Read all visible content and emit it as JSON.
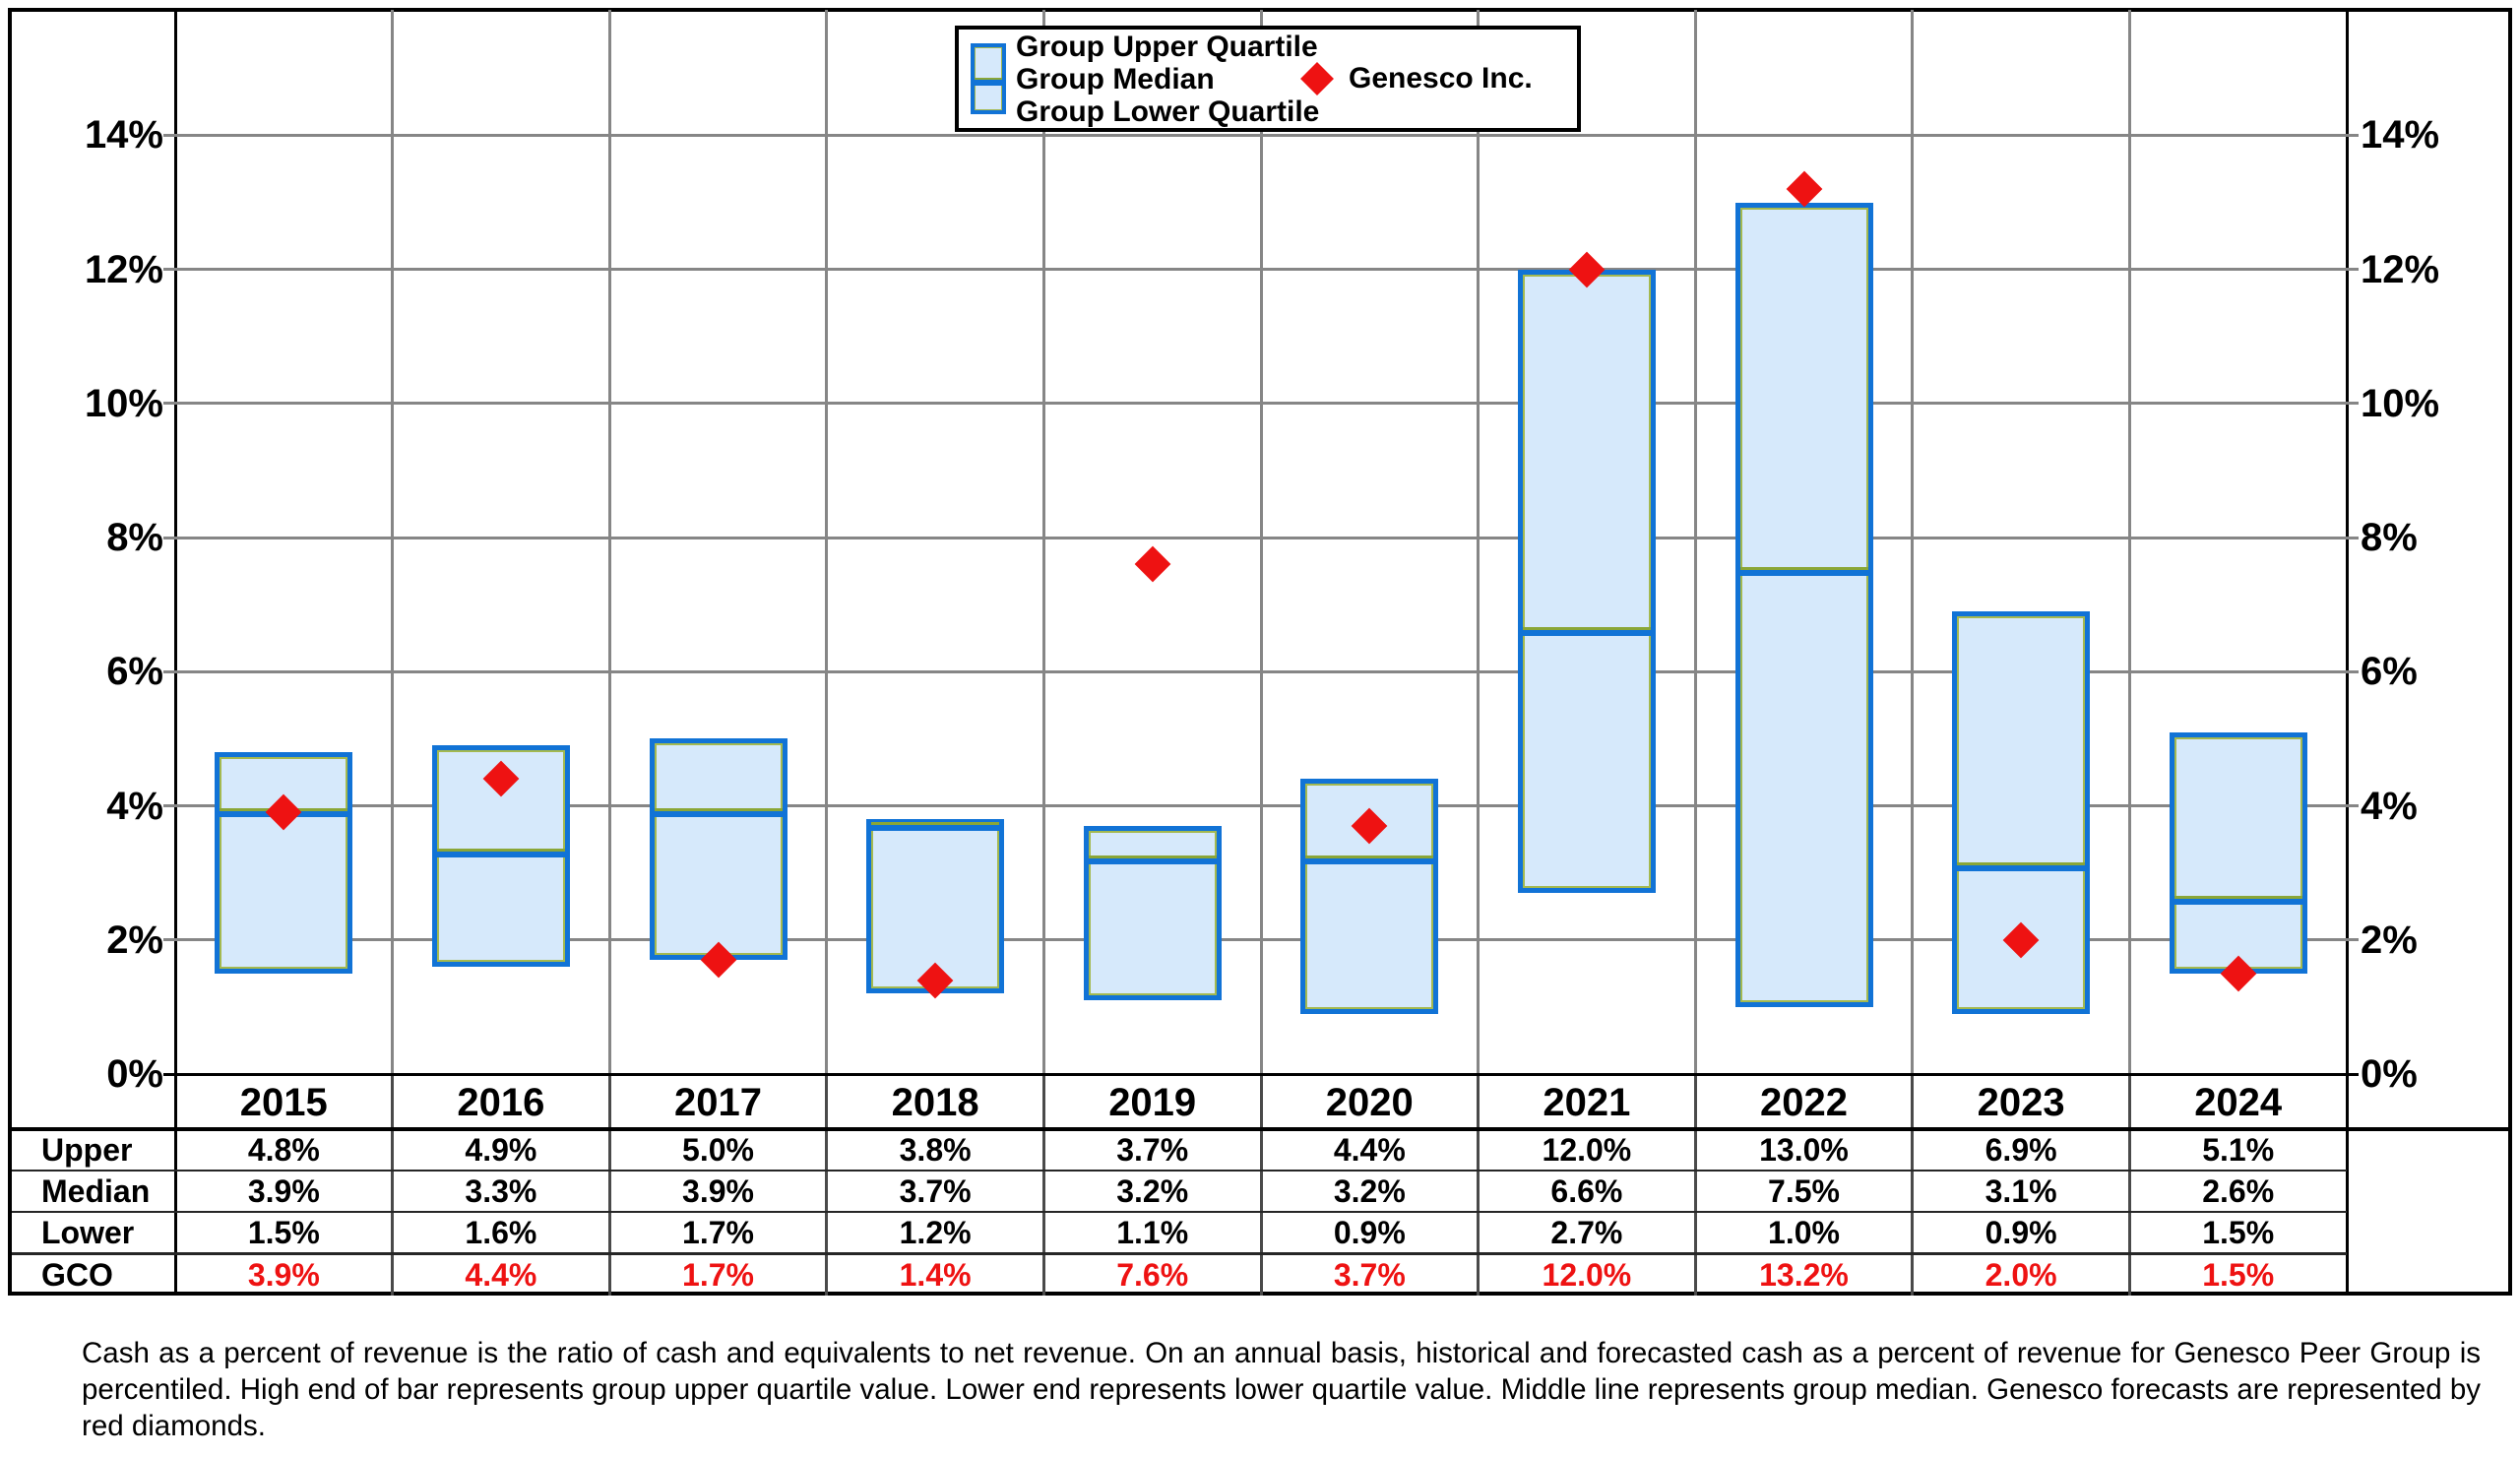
{
  "colors": {
    "bar_fill": "#d6e9fb",
    "bar_border": "#1173d6",
    "bar_inner_green": "#a4b94f",
    "median_green": "#8aa637",
    "diamond_red": "#ee1212",
    "gco_text_red": "#ee1212",
    "gridline_gray": "#868686",
    "axis_black": "#000000"
  },
  "legend": {
    "group_items": [
      "Group Upper Quartile",
      "Group Median",
      "Group Lower Quartile"
    ],
    "genesco": "Genesco Inc."
  },
  "chart_data": {
    "type": "bar",
    "subtype": "quartile-range-bars-with-scatter-diamonds",
    "title": "",
    "categories": [
      "2015",
      "2016",
      "2017",
      "2018",
      "2019",
      "2020",
      "2021",
      "2022",
      "2023",
      "2024"
    ],
    "series": [
      {
        "name": "Group Upper Quartile",
        "key": "upper",
        "values": [
          4.8,
          4.9,
          5.0,
          3.8,
          3.7,
          4.4,
          12.0,
          13.0,
          6.9,
          5.1
        ]
      },
      {
        "name": "Group Median",
        "key": "median",
        "values": [
          3.9,
          3.3,
          3.9,
          3.7,
          3.2,
          3.2,
          6.6,
          7.5,
          3.1,
          2.6
        ]
      },
      {
        "name": "Group Lower Quartile",
        "key": "lower",
        "values": [
          1.5,
          1.6,
          1.7,
          1.2,
          1.1,
          0.9,
          2.7,
          1.0,
          0.9,
          1.5
        ]
      },
      {
        "name": "Genesco Inc.",
        "key": "gco",
        "values": [
          3.9,
          4.4,
          1.7,
          1.4,
          7.6,
          3.7,
          12.0,
          13.2,
          2.0,
          1.5
        ]
      }
    ],
    "xlabel": "",
    "ylabel": "",
    "yticks": [
      0,
      2,
      4,
      6,
      8,
      10,
      12,
      14
    ],
    "ytick_suffix": "%",
    "ylim": [
      0,
      15.9
    ],
    "grid": true,
    "dual_y_axis_labels": true,
    "legend_position": "top-center",
    "value_format": "one_decimal_percent"
  },
  "table": {
    "row_headers": [
      "Upper",
      "Median",
      "Lower",
      "GCO"
    ],
    "row_series_keys": [
      "upper",
      "median",
      "lower",
      "gco"
    ],
    "red_row_key": "gco"
  },
  "footnote": "Cash as a percent of revenue is the ratio of cash and equivalents to net revenue.  On an annual basis, historical and forecasted cash as a percent of revenue for Genesco Peer Group is percentiled.  High end of bar represents group upper quartile value.  Lower end represents lower quartile value.  Middle line represents group median.  Genesco forecasts are represented by red diamonds."
}
